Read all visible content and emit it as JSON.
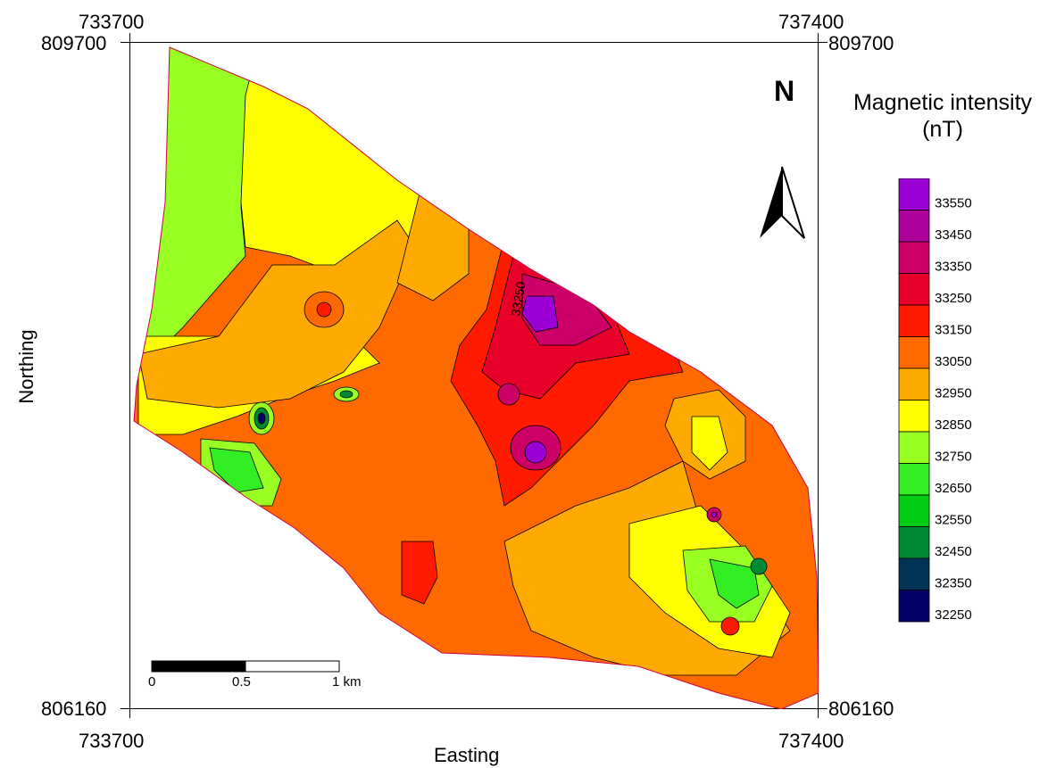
{
  "axes": {
    "x_min_label": "733700",
    "x_max_label": "737400",
    "y_max_label": "809700",
    "y_min_label": "806160",
    "xlabel": "Easting",
    "ylabel": "Northing"
  },
  "north_arrow": {
    "label": "N",
    "icon": "north-arrow-icon"
  },
  "legend": {
    "title_line1": "Magnetic intensity",
    "title_line2": "(nT)",
    "classes": [
      {
        "value": "33550",
        "color": "#9b00d4"
      },
      {
        "value": "33450",
        "color": "#b0009c"
      },
      {
        "value": "33350",
        "color": "#cc0066"
      },
      {
        "value": "33250",
        "color": "#e8002a"
      },
      {
        "value": "33150",
        "color": "#ff1a00"
      },
      {
        "value": "33050",
        "color": "#ff6a00"
      },
      {
        "value": "32950",
        "color": "#ffaa00"
      },
      {
        "value": "32850",
        "color": "#ffff00"
      },
      {
        "value": "32750",
        "color": "#99ff22"
      },
      {
        "value": "32650",
        "color": "#33ee22"
      },
      {
        "value": "32550",
        "color": "#00cc11"
      },
      {
        "value": "32450",
        "color": "#008833"
      },
      {
        "value": "32350",
        "color": "#003355"
      },
      {
        "value": "32250",
        "color": "#000066"
      }
    ]
  },
  "contour_label": "33250",
  "scale_bar": {
    "labels": [
      "0",
      "0.5",
      "1 km"
    ]
  }
}
